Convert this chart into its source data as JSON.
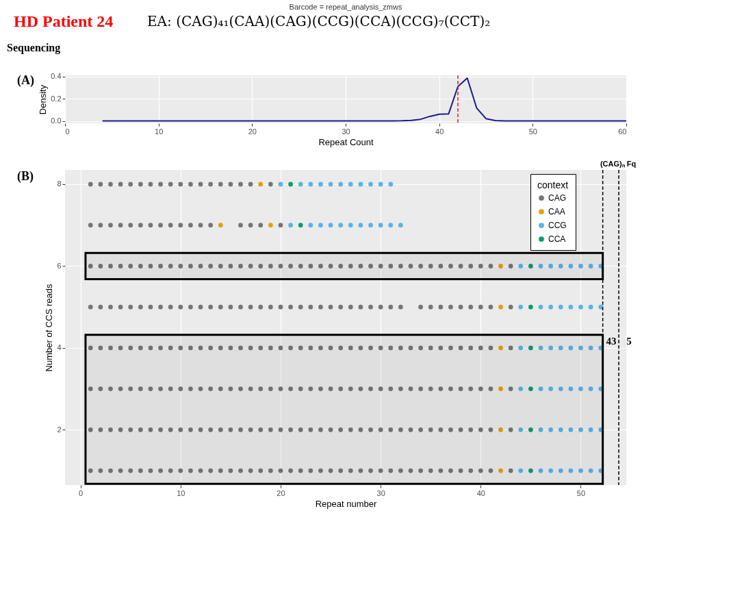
{
  "chart_data": [
    {
      "type": "line",
      "title": "Barcode = repeat_analysis_zmws",
      "xlabel": "Repeat Count",
      "ylabel": "Density",
      "annotations": [
        "HD Patient 24",
        "EA: (CAG)₄₁(CAA)(CAG)(CCG)(CCA)(CCG)₇(CCT)₂",
        "Sequencing",
        "(A)"
      ],
      "x": [
        4,
        35,
        36,
        37,
        38,
        39,
        40,
        41,
        42,
        43,
        44,
        45,
        46,
        47,
        60
      ],
      "series": [
        {
          "color": "#1a1a8c",
          "values": [
            0.002,
            0.002,
            0.003,
            0.006,
            0.016,
            0.042,
            0.061,
            0.064,
            0.31,
            0.385,
            0.118,
            0.022,
            0.005,
            0.002,
            0.002
          ]
        }
      ],
      "xlim": [
        0,
        60
      ],
      "ylim": [
        -0.02,
        0.41
      ],
      "xticks": [
        0,
        10,
        20,
        30,
        40,
        50,
        60
      ],
      "yticks": [
        {
          "value": 0,
          "label": "0.0"
        },
        {
          "value": 0.2,
          "label": "0.2"
        },
        {
          "value": 0.4,
          "label": "0.4"
        }
      ],
      "ref_lines": [
        {
          "axis": "x",
          "value": 42,
          "color": "#e41a1c",
          "line_style": "dashed"
        }
      ],
      "grid": true
    },
    {
      "type": "scatter",
      "xlabel": "Repeat number",
      "ylabel": "Number of CCS reads",
      "legend_title": "context",
      "legend": "top right",
      "grid": true,
      "marker": "circle",
      "annotations": [
        "(B)",
        "(CAG)ₙ Fq",
        "43",
        "5"
      ],
      "series": [
        {
          "name": "CAG",
          "color": "#767676",
          "x": [
            1,
            2,
            3,
            4,
            5,
            6,
            7,
            8,
            9,
            10,
            11,
            12,
            13,
            14,
            15,
            16,
            17,
            19,
            1,
            2,
            3,
            4,
            5,
            6,
            7,
            8,
            9,
            10,
            11,
            12,
            13,
            16,
            17,
            18,
            20,
            1,
            2,
            3,
            4,
            5,
            6,
            7,
            8,
            9,
            10,
            11,
            12,
            13,
            14,
            15,
            16,
            17,
            18,
            19,
            20,
            21,
            22,
            23,
            24,
            25,
            26,
            27,
            28,
            29,
            30,
            31,
            32,
            33,
            34,
            35,
            36,
            37,
            38,
            39,
            40,
            41,
            43,
            1,
            2,
            3,
            4,
            5,
            6,
            7,
            8,
            9,
            10,
            11,
            12,
            13,
            14,
            15,
            16,
            17,
            18,
            19,
            20,
            21,
            22,
            23,
            24,
            25,
            26,
            27,
            28,
            29,
            30,
            31,
            32,
            34,
            35,
            36,
            37,
            38,
            39,
            40,
            41,
            43,
            1,
            2,
            3,
            4,
            5,
            6,
            7,
            8,
            9,
            10,
            11,
            12,
            13,
            14,
            15,
            16,
            17,
            18,
            19,
            20,
            21,
            22,
            23,
            24,
            25,
            26,
            27,
            28,
            29,
            30,
            31,
            32,
            33,
            34,
            35,
            36,
            37,
            38,
            39,
            40,
            41,
            43,
            1,
            2,
            3,
            4,
            5,
            6,
            7,
            8,
            9,
            10,
            11,
            12,
            13,
            14,
            15,
            16,
            17,
            18,
            19,
            20,
            21,
            22,
            23,
            24,
            25,
            26,
            27,
            28,
            29,
            30,
            31,
            32,
            33,
            34,
            35,
            36,
            37,
            38,
            39,
            40,
            41,
            43,
            1,
            2,
            3,
            4,
            5,
            6,
            7,
            8,
            9,
            10,
            11,
            12,
            13,
            14,
            15,
            16,
            17,
            18,
            19,
            20,
            21,
            22,
            23,
            24,
            25,
            26,
            27,
            28,
            29,
            30,
            31,
            32,
            33,
            34,
            35,
            36,
            37,
            38,
            39,
            40,
            41,
            43,
            1,
            2,
            3,
            4,
            5,
            6,
            7,
            8,
            9,
            10,
            11,
            12,
            13,
            14,
            15,
            16,
            17,
            18,
            19,
            20,
            21,
            22,
            23,
            24,
            25,
            26,
            27,
            28,
            29,
            30,
            31,
            32,
            33,
            34,
            35,
            36,
            37,
            38,
            39,
            40,
            41,
            43
          ],
          "values": [
            8,
            8,
            8,
            8,
            8,
            8,
            8,
            8,
            8,
            8,
            8,
            8,
            8,
            8,
            8,
            8,
            8,
            8,
            7,
            7,
            7,
            7,
            7,
            7,
            7,
            7,
            7,
            7,
            7,
            7,
            7,
            7,
            7,
            7,
            7,
            6,
            6,
            6,
            6,
            6,
            6,
            6,
            6,
            6,
            6,
            6,
            6,
            6,
            6,
            6,
            6,
            6,
            6,
            6,
            6,
            6,
            6,
            6,
            6,
            6,
            6,
            6,
            6,
            6,
            6,
            6,
            6,
            6,
            6,
            6,
            6,
            6,
            6,
            6,
            6,
            6,
            6,
            5,
            5,
            5,
            5,
            5,
            5,
            5,
            5,
            5,
            5,
            5,
            5,
            5,
            5,
            5,
            5,
            5,
            5,
            5,
            5,
            5,
            5,
            5,
            5,
            5,
            5,
            5,
            5,
            5,
            5,
            5,
            5,
            5,
            5,
            5,
            5,
            5,
            5,
            5,
            5,
            5,
            4,
            4,
            4,
            4,
            4,
            4,
            4,
            4,
            4,
            4,
            4,
            4,
            4,
            4,
            4,
            4,
            4,
            4,
            4,
            4,
            4,
            4,
            4,
            4,
            4,
            4,
            4,
            4,
            4,
            4,
            4,
            4,
            4,
            4,
            4,
            4,
            4,
            4,
            4,
            4,
            4,
            4,
            3,
            3,
            3,
            3,
            3,
            3,
            3,
            3,
            3,
            3,
            3,
            3,
            3,
            3,
            3,
            3,
            3,
            3,
            3,
            3,
            3,
            3,
            3,
            3,
            3,
            3,
            3,
            3,
            3,
            3,
            3,
            3,
            3,
            3,
            3,
            3,
            3,
            3,
            3,
            3,
            3,
            3,
            2,
            2,
            2,
            2,
            2,
            2,
            2,
            2,
            2,
            2,
            2,
            2,
            2,
            2,
            2,
            2,
            2,
            2,
            2,
            2,
            2,
            2,
            2,
            2,
            2,
            2,
            2,
            2,
            2,
            2,
            2,
            2,
            2,
            2,
            2,
            2,
            2,
            2,
            2,
            2,
            2,
            2,
            1,
            1,
            1,
            1,
            1,
            1,
            1,
            1,
            1,
            1,
            1,
            1,
            1,
            1,
            1,
            1,
            1,
            1,
            1,
            1,
            1,
            1,
            1,
            1,
            1,
            1,
            1,
            1,
            1,
            1,
            1,
            1,
            1,
            1,
            1,
            1,
            1,
            1,
            1,
            1,
            1,
            1
          ]
        },
        {
          "name": "CAA",
          "color": "#e69f00",
          "x": [
            18,
            14,
            19,
            42,
            42,
            42,
            42,
            42,
            42
          ],
          "values": [
            8,
            7,
            7,
            6,
            5,
            4,
            3,
            2,
            1
          ]
        },
        {
          "name": "CCG",
          "color": "#56b4e9",
          "x": [
            20,
            22,
            23,
            24,
            25,
            26,
            27,
            28,
            29,
            30,
            31,
            21,
            23,
            24,
            25,
            26,
            27,
            28,
            29,
            30,
            31,
            32,
            44,
            46,
            47,
            48,
            49,
            50,
            51,
            52,
            44,
            46,
            47,
            48,
            49,
            50,
            51,
            52,
            44,
            46,
            47,
            48,
            49,
            50,
            51,
            52,
            44,
            46,
            47,
            48,
            49,
            50,
            51,
            52,
            44,
            46,
            47,
            48,
            49,
            50,
            51,
            52,
            44,
            46,
            47,
            48,
            49,
            50,
            51,
            52
          ],
          "values": [
            8,
            8,
            8,
            8,
            8,
            8,
            8,
            8,
            8,
            8,
            8,
            7,
            7,
            7,
            7,
            7,
            7,
            7,
            7,
            7,
            7,
            7,
            6,
            6,
            6,
            6,
            6,
            6,
            6,
            6,
            5,
            5,
            5,
            5,
            5,
            5,
            5,
            5,
            4,
            4,
            4,
            4,
            4,
            4,
            4,
            4,
            3,
            3,
            3,
            3,
            3,
            3,
            3,
            3,
            2,
            2,
            2,
            2,
            2,
            2,
            2,
            2,
            1,
            1,
            1,
            1,
            1,
            1,
            1,
            1
          ]
        },
        {
          "name": "CCA",
          "color": "#009e73",
          "x": [
            21,
            22,
            45,
            45,
            45,
            45,
            45,
            45
          ],
          "values": [
            8,
            7,
            6,
            5,
            4,
            3,
            2,
            1
          ]
        }
      ],
      "xlim": [
        -1.55,
        54.55
      ],
      "ylim": [
        0.65,
        8.35
      ],
      "xticks": [
        0,
        10,
        20,
        30,
        40,
        50
      ],
      "yticks": [
        2,
        4,
        6,
        8
      ],
      "ref_lines": [
        {
          "axis": "x",
          "value": 52.2,
          "color": "#000000",
          "line_style": "dashed"
        },
        {
          "axis": "x",
          "value": 53.8,
          "color": "#000000",
          "line_style": "dashed"
        }
      ],
      "bands": [
        {
          "axis": "y",
          "from": 5.68,
          "to": 6.32,
          "color": "#000000"
        },
        {
          "axis": "y",
          "from": 0.68,
          "to": 4.32,
          "color": "#000000"
        }
      ]
    }
  ]
}
